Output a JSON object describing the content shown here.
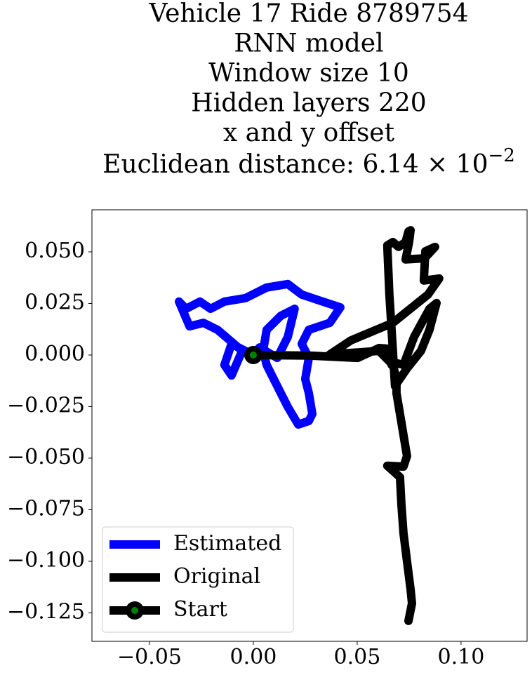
{
  "chart_data": {
    "type": "line",
    "title_lines": [
      "Vehicle 17 Ride 8789754",
      "RNN model",
      "Window size 10",
      "Hidden layers 220",
      "x and y offset"
    ],
    "title_metric": "Euclidean distance: 6.14 × 10",
    "title_metric_exponent": "−2",
    "xlim": [
      -0.0777,
      0.1318
    ],
    "ylim": [
      -0.1388,
      0.0704
    ],
    "xticks": [
      {
        "value": -0.05,
        "label": "−0.05"
      },
      {
        "value": 0,
        "label": "0.00"
      },
      {
        "value": 0.05,
        "label": "0.05"
      },
      {
        "value": 0.1,
        "label": "0.10"
      }
    ],
    "yticks": [
      {
        "value": 0.05,
        "label": "0.050"
      },
      {
        "value": 0.025,
        "label": "0.025"
      },
      {
        "value": 0,
        "label": "0.000"
      },
      {
        "value": -0.025,
        "label": "−0.025"
      },
      {
        "value": -0.05,
        "label": "−0.050"
      },
      {
        "value": -0.075,
        "label": "−0.075"
      },
      {
        "value": -0.1,
        "label": "−0.100"
      },
      {
        "value": -0.125,
        "label": "−0.125"
      }
    ],
    "grid": false,
    "legend": "lower left",
    "series": [
      {
        "name": "Estimated",
        "color": "#0000ff",
        "x": [
          0,
          -0.0105,
          -0.0139,
          -0.0105,
          -0.0054,
          -0.0172,
          -0.024,
          -0.0307,
          -0.0358,
          -0.0324,
          -0.0257,
          -0.0206,
          -0.0139,
          -0.0037,
          0.0064,
          0.0166,
          0.0233,
          0.0334,
          0.0419,
          0.0368,
          0.0267,
          0.0233,
          0.0267,
          0.025,
          0.0267,
          0.0284,
          0.0267,
          0.0216,
          0.0166,
          0.0132,
          0.0098,
          0.0064,
          0.0047,
          0.0064,
          0.0132,
          0.0199,
          0.0166,
          0.0115,
          0.003,
          0
        ],
        "y": [
          0,
          0.0054,
          -0.0048,
          -0.0099,
          0.002,
          0.0122,
          0.0156,
          0.0139,
          0.0259,
          0.0224,
          0.0259,
          0.0224,
          0.0259,
          0.0276,
          0.0327,
          0.0344,
          0.0293,
          0.0259,
          0.0231,
          0.0156,
          0.0122,
          0.0054,
          -0.0014,
          -0.0116,
          -0.0184,
          -0.0286,
          -0.032,
          -0.0337,
          -0.0252,
          -0.0184,
          -0.0116,
          -0.0048,
          0.002,
          0.0122,
          0.019,
          0.0224,
          0.0088,
          -0.0014,
          0.0037,
          0
        ]
      },
      {
        "name": "Original",
        "color": "#000000",
        "x": [
          0,
          0.0267,
          0.0503,
          0.0605,
          0.0645,
          0.0666,
          0.0696,
          0.0723,
          0.0774,
          0.0848,
          0.0882,
          0.0848,
          0.0807,
          0.074,
          0.0682,
          0.0672,
          0.0655,
          0.0645,
          0.0672,
          0.0699,
          0.0733,
          0.0747,
          0.0757,
          0.075,
          0.0733,
          0.0824,
          0.0875,
          0.0828,
          0.0821,
          0.0895,
          0.0841,
          0.0672,
          0.047,
          0.0368,
          0.0605,
          0.0672,
          0.0689,
          0.0689,
          0.0706,
          0.0723,
          0.074,
          0.0723,
          0.0645,
          0.0706,
          0.0713,
          0.0723,
          0.074,
          0.0757,
          0.0764,
          0.0747
        ],
        "y": [
          0,
          -0.0003,
          -0.0014,
          0.0034,
          0.0031,
          -0.0048,
          -0.0041,
          -0.0048,
          0.0088,
          0.0224,
          0.0252,
          0.0122,
          0.002,
          -0.0065,
          -0.015,
          0.002,
          0.0293,
          0.0531,
          0.0548,
          0.0524,
          0.0548,
          0.0599,
          0.0605,
          0.0548,
          0.0463,
          0.0469,
          0.0524,
          0.0503,
          0.0361,
          0.0371,
          0.0293,
          0.0156,
          0.0071,
          0.0003,
          0.002,
          -0.0048,
          -0.0116,
          -0.0184,
          -0.0286,
          -0.0388,
          -0.049,
          -0.0541,
          -0.0537,
          -0.0592,
          -0.0728,
          -0.0864,
          -0.1,
          -0.1136,
          -0.1204,
          -0.1289
        ]
      },
      {
        "name": "Start",
        "color": "#000000",
        "marker_color": "#008000",
        "x": [
          0
        ],
        "y": [
          0
        ]
      }
    ]
  }
}
